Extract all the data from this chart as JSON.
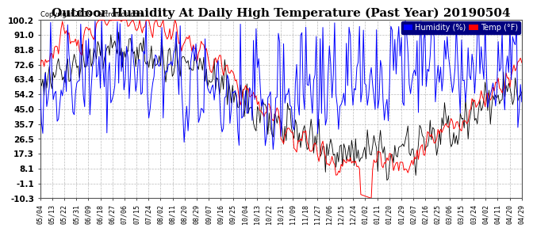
{
  "title": "Outdoor Humidity At Daily High Temperature (Past Year) 20190504",
  "copyright": "Copyright 2019 Cartronics.com",
  "yticks": [
    100.2,
    91.0,
    81.8,
    72.6,
    63.4,
    54.2,
    45.0,
    35.7,
    26.5,
    17.3,
    8.1,
    -1.1,
    -10.3
  ],
  "ymin": -10.3,
  "ymax": 100.2,
  "legend_humidity_label": "Humidity (%)",
  "legend_temp_label": "Temp (°F)",
  "humidity_color": "#0000FF",
  "temp_color": "#FF0000",
  "black_color": "#000000",
  "bg_color": "#FFFFFF",
  "plot_bg": "#FFFFFF",
  "grid_color": "#AAAAAA",
  "title_fontsize": 11,
  "xlabel_rotation": 90,
  "xtick_fontsize": 6.0,
  "ytick_fontsize": 7.5,
  "xtick_labels": [
    "05/04",
    "05/13",
    "05/22",
    "05/31",
    "06/09",
    "06/18",
    "06/27",
    "07/06",
    "07/15",
    "07/24",
    "08/02",
    "08/11",
    "08/20",
    "08/29",
    "09/07",
    "09/16",
    "09/25",
    "10/04",
    "10/13",
    "10/22",
    "10/31",
    "11/09",
    "11/18",
    "11/27",
    "12/06",
    "12/15",
    "12/24",
    "01/02",
    "01/11",
    "01/20",
    "01/29",
    "02/07",
    "02/16",
    "02/25",
    "03/06",
    "03/15",
    "03/24",
    "04/02",
    "04/11",
    "04/20",
    "04/29"
  ]
}
